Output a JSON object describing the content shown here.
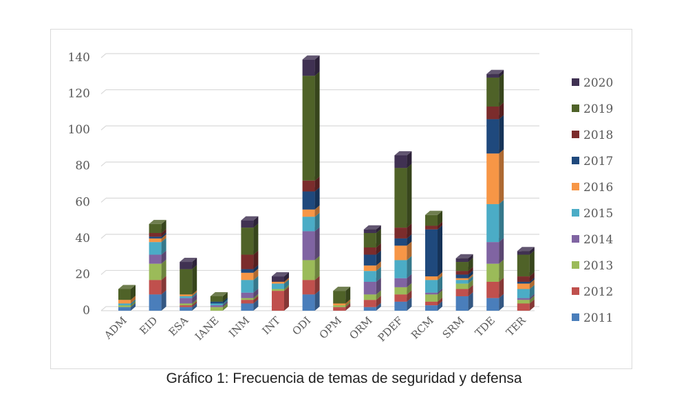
{
  "caption": "Gráfico 1: Frecuencia de temas de seguridad y defensa",
  "chart_data": {
    "type": "bar",
    "stacked": true,
    "style": "3d-stacked-column",
    "categories": [
      "ADM",
      "EID",
      "ESA",
      "IANE",
      "INM",
      "INT",
      "ODI",
      "OPM",
      "ORM",
      "PDEF",
      "RCM",
      "SRM",
      "TDE",
      "TER"
    ],
    "ylim": [
      0,
      140
    ],
    "yticks": [
      0,
      20,
      40,
      60,
      80,
      100,
      120,
      140
    ],
    "grid": true,
    "legend_position": "right",
    "series": [
      {
        "name": "2011",
        "color": "#4a7ebb",
        "values": [
          2,
          9,
          2,
          0,
          4,
          0,
          9,
          0,
          2,
          5,
          3,
          8,
          7,
          0
        ]
      },
      {
        "name": "2012",
        "color": "#c0504d",
        "values": [
          0,
          8,
          1,
          0,
          2,
          11,
          8,
          2,
          4,
          4,
          2,
          4,
          9,
          4
        ]
      },
      {
        "name": "2013",
        "color": "#9bbb59",
        "values": [
          1,
          9,
          1,
          2,
          1,
          1,
          11,
          1,
          3,
          4,
          4,
          3,
          10,
          2
        ]
      },
      {
        "name": "2014",
        "color": "#8064a2",
        "values": [
          0,
          5,
          3,
          1,
          3,
          0,
          16,
          0,
          7,
          5,
          1,
          0,
          12,
          1
        ]
      },
      {
        "name": "2015",
        "color": "#4bacc6",
        "values": [
          1,
          7,
          1,
          1,
          7,
          3,
          8,
          0,
          6,
          10,
          7,
          2,
          21,
          5
        ]
      },
      {
        "name": "2016",
        "color": "#f79646",
        "values": [
          2,
          2,
          1,
          0,
          4,
          1,
          4,
          1,
          3,
          8,
          2,
          1,
          28,
          3
        ]
      },
      {
        "name": "2017",
        "color": "#1f497d",
        "values": [
          0,
          1,
          0,
          1,
          2,
          0,
          10,
          0,
          6,
          4,
          26,
          2,
          19,
          1
        ]
      },
      {
        "name": "2018",
        "color": "#7b2c2c",
        "values": [
          0,
          2,
          0,
          0,
          8,
          0,
          6,
          0,
          4,
          6,
          2,
          2,
          7,
          3
        ]
      },
      {
        "name": "2019",
        "color": "#4f6228",
        "values": [
          6,
          5,
          14,
          3,
          15,
          0,
          58,
          7,
          8,
          33,
          6,
          5,
          16,
          12
        ]
      },
      {
        "name": "2020",
        "color": "#403152",
        "values": [
          0,
          0,
          4,
          0,
          4,
          3,
          9,
          0,
          2,
          7,
          0,
          2,
          2,
          2
        ]
      }
    ]
  }
}
